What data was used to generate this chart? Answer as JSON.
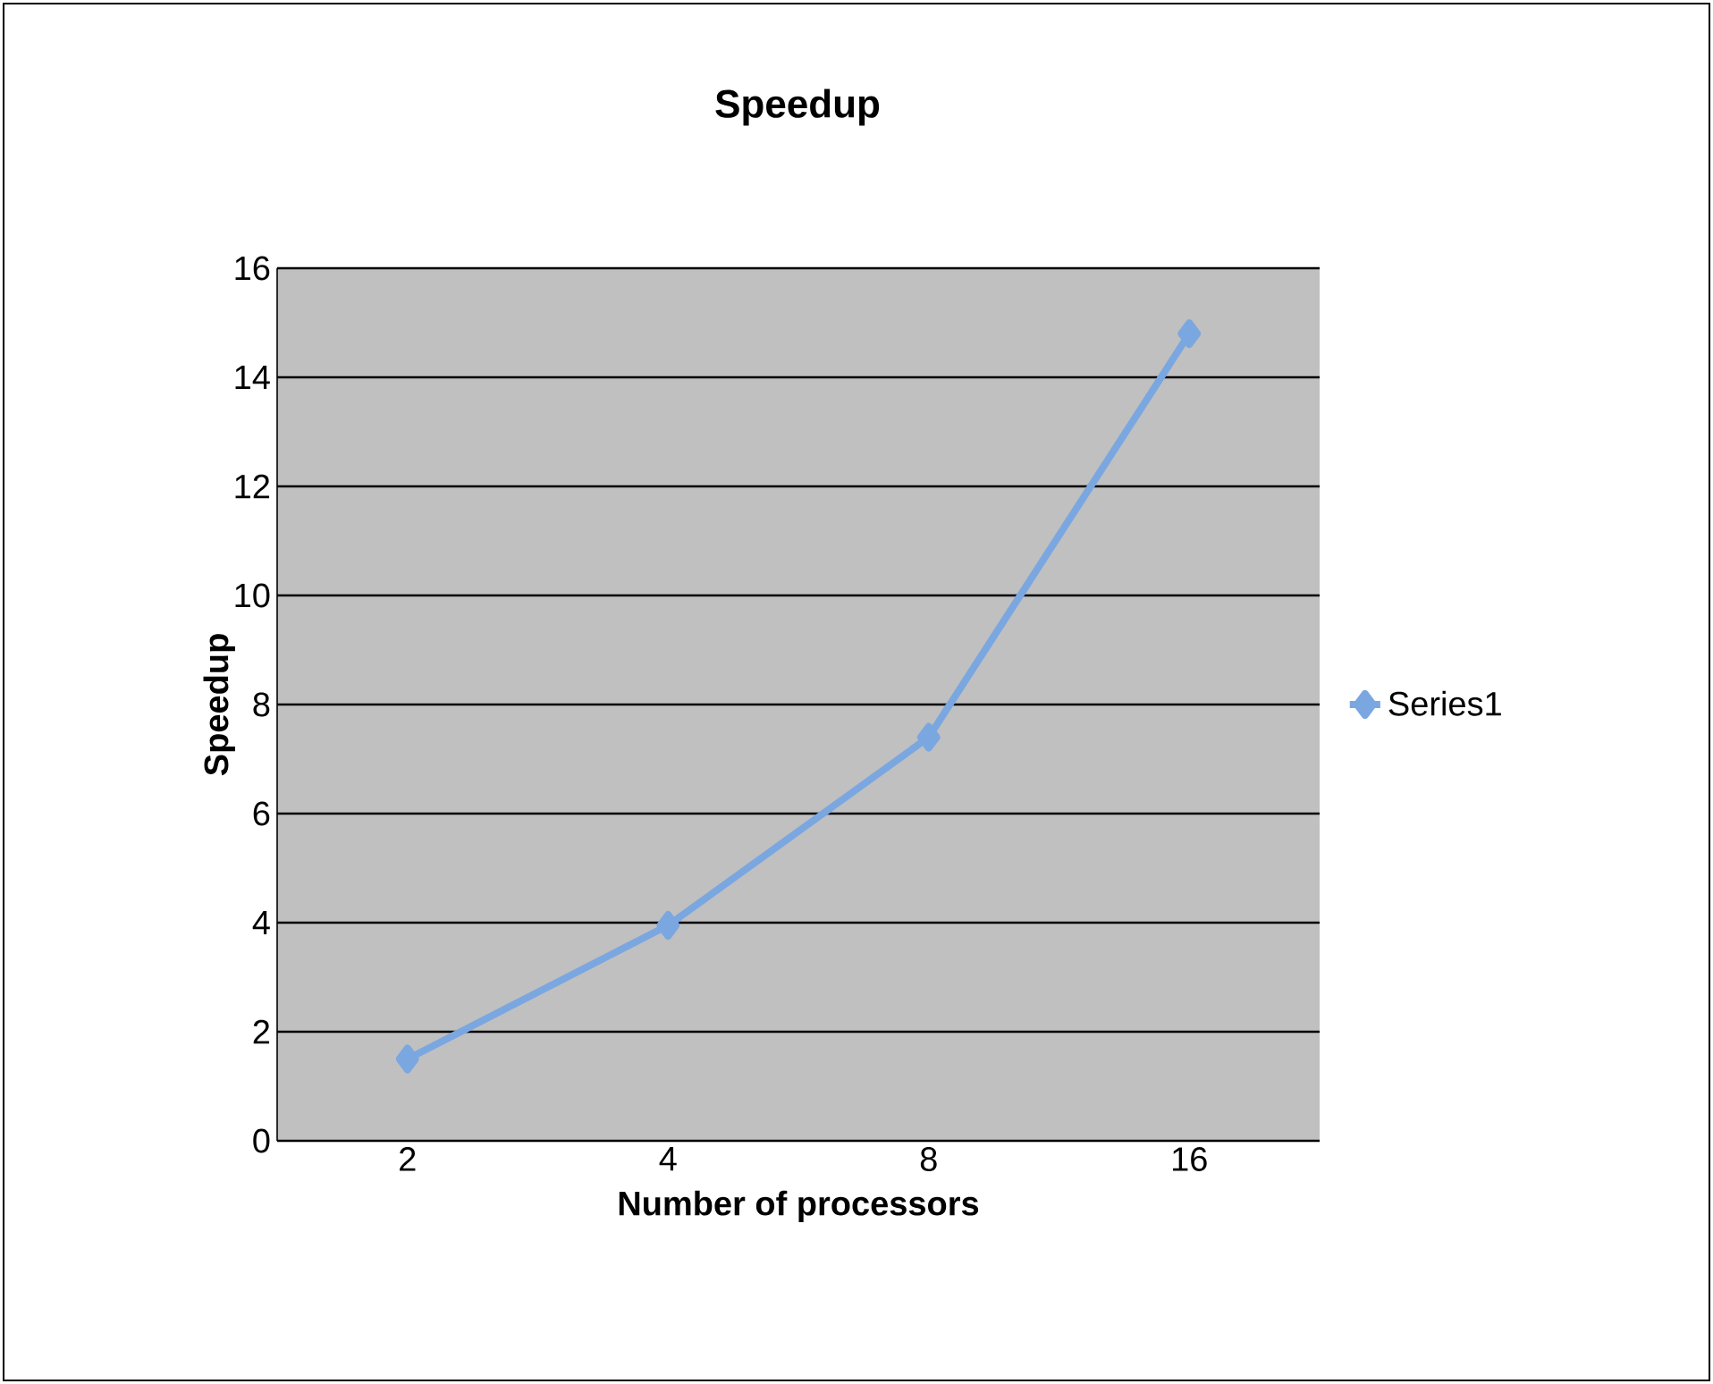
{
  "chart_data": {
    "type": "line",
    "title": "Speedup",
    "xlabel": "Number of processors",
    "ylabel": "Speedup",
    "categories": [
      "2",
      "4",
      "8",
      "16"
    ],
    "series": [
      {
        "name": "Series1",
        "color": "#7ba7e1",
        "values": [
          1.5,
          3.95,
          7.4,
          14.8
        ]
      }
    ],
    "ylim": [
      0,
      16
    ],
    "yticks": [
      0,
      2,
      4,
      6,
      8,
      10,
      12,
      14,
      16
    ],
    "grid": "y",
    "legend": "right",
    "marker": "diamond",
    "line_style": "solid"
  }
}
